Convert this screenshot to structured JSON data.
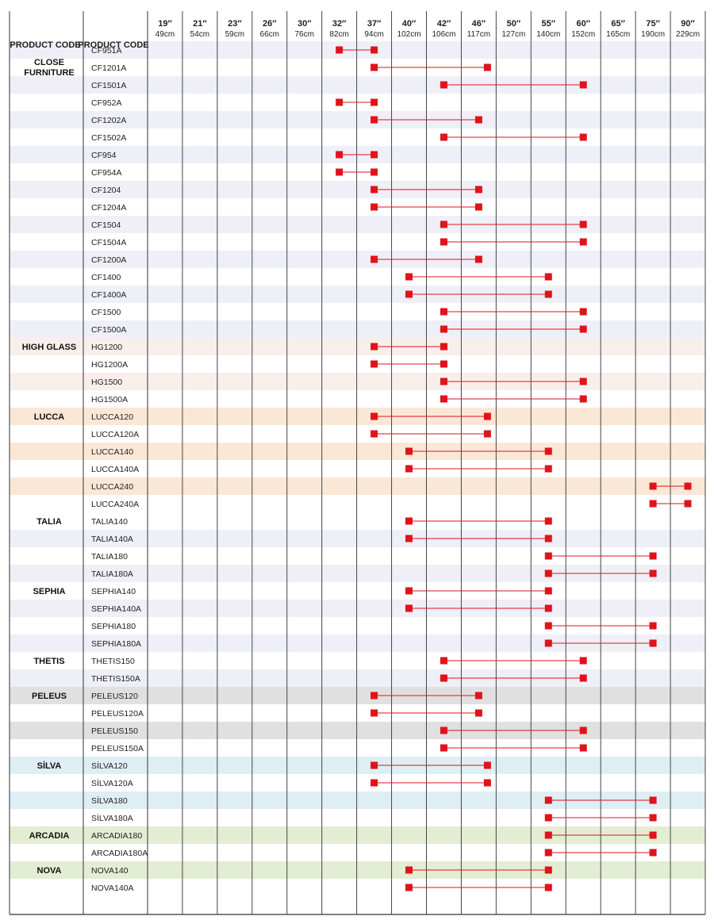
{
  "chart_data": {
    "type": "table",
    "headers": {
      "family": "PRODUCT CODE",
      "code": "PRODUCT CODE",
      "first_family": "CLOSE FURNITURE"
    },
    "size_columns": [
      {
        "inch": "19″",
        "cm": "49cm"
      },
      {
        "inch": "21″",
        "cm": "54cm"
      },
      {
        "inch": "23″",
        "cm": "59cm"
      },
      {
        "inch": "26″",
        "cm": "66cm"
      },
      {
        "inch": "30″",
        "cm": "76cm"
      },
      {
        "inch": "32″",
        "cm": "82cm"
      },
      {
        "inch": "37″",
        "cm": "94cm"
      },
      {
        "inch": "40″",
        "cm": "102cm"
      },
      {
        "inch": "42″",
        "cm": "106cm"
      },
      {
        "inch": "46″",
        "cm": "117cm"
      },
      {
        "inch": "50″",
        "cm": "127cm"
      },
      {
        "inch": "55″",
        "cm": "140cm"
      },
      {
        "inch": "60″",
        "cm": "152cm"
      },
      {
        "inch": "65″",
        "cm": "165cm"
      },
      {
        "inch": "75″",
        "cm": "190cm"
      },
      {
        "inch": "90″",
        "cm": "229cm"
      }
    ],
    "families": [
      {
        "label": "CLOSE FURNITURE",
        "band": "#efeff8",
        "rows": [
          {
            "code": "CF951A",
            "min": 32,
            "max": 37
          },
          {
            "code": "CF1201A",
            "min": 37,
            "max": 47
          },
          {
            "code": "CF1501A",
            "min": 42,
            "max": 60
          },
          {
            "code": "CF952A",
            "min": 32,
            "max": 37
          },
          {
            "code": "CF1202A",
            "min": 37,
            "max": 46
          },
          {
            "code": "CF1502A",
            "min": 42,
            "max": 60
          },
          {
            "code": "CF954",
            "min": 32,
            "max": 37
          },
          {
            "code": "CF954A",
            "min": 32,
            "max": 37
          },
          {
            "code": "CF1204",
            "min": 37,
            "max": 46
          },
          {
            "code": "CF1204A",
            "min": 37,
            "max": 46
          },
          {
            "code": "CF1504",
            "min": 42,
            "max": 60
          },
          {
            "code": "CF1504A",
            "min": 42,
            "max": 60
          },
          {
            "code": "CF1200A",
            "min": 37,
            "max": 46
          },
          {
            "code": "CF1400",
            "min": 40,
            "max": 55
          },
          {
            "code": "CF1400A",
            "min": 40,
            "max": 55
          },
          {
            "code": "CF1500",
            "min": 42,
            "max": 60
          },
          {
            "code": "CF1500A",
            "min": 42,
            "max": 60
          }
        ]
      },
      {
        "label": "HIGH GLASS",
        "band": "#f9efea",
        "rows": [
          {
            "code": "HG1200",
            "min": 37,
            "max": 42
          },
          {
            "code": "HG1200A",
            "min": 37,
            "max": 42
          },
          {
            "code": "HG1500",
            "min": 42,
            "max": 60
          },
          {
            "code": "HG1500A",
            "min": 42,
            "max": 60
          }
        ]
      },
      {
        "label": "LUCCA",
        "band": "#fbe7d6",
        "rows": [
          {
            "code": "LUCCA120",
            "min": 37,
            "max": 47
          },
          {
            "code": "LUCCA120A",
            "min": 37,
            "max": 47
          },
          {
            "code": "LUCCA140",
            "min": 40,
            "max": 55
          },
          {
            "code": "LUCCA140A",
            "min": 40,
            "max": 55
          },
          {
            "code": "LUCCA240",
            "min": 75,
            "max": 90
          },
          {
            "code": "LUCCA240A",
            "min": 75,
            "max": 90
          }
        ]
      },
      {
        "label": "TALIA",
        "band": "#efeff8",
        "rows": [
          {
            "code": "TALIA140",
            "min": 40,
            "max": 55
          },
          {
            "code": "TALIA140A",
            "min": 40,
            "max": 55
          },
          {
            "code": "TALIA180",
            "min": 55,
            "max": 75
          },
          {
            "code": "TALIA180A",
            "min": 55,
            "max": 75
          }
        ]
      },
      {
        "label": "SEPHIA",
        "band": "#efeff8",
        "rows": [
          {
            "code": "SEPHIA140",
            "min": 40,
            "max": 55
          },
          {
            "code": "SEPHIA140A",
            "min": 40,
            "max": 55
          },
          {
            "code": "SEPHIA180",
            "min": 55,
            "max": 75
          },
          {
            "code": "SEPHIA180A",
            "min": 55,
            "max": 75
          }
        ]
      },
      {
        "label": "THETIS",
        "band": "#efeff8",
        "rows": [
          {
            "code": "THETIS150",
            "min": 42,
            "max": 60
          },
          {
            "code": "THETIS150A",
            "min": 42,
            "max": 60
          }
        ]
      },
      {
        "label": "PELEUS",
        "band": "#e0e0e0",
        "rows": [
          {
            "code": "PELEUS120",
            "min": 37,
            "max": 46
          },
          {
            "code": "PELEUS120A",
            "min": 37,
            "max": 46
          },
          {
            "code": "PELEUS150",
            "min": 42,
            "max": 60
          },
          {
            "code": "PELEUS150A",
            "min": 42,
            "max": 60
          }
        ]
      },
      {
        "label": "SİLVA",
        "band": "#dfeef4",
        "rows": [
          {
            "code": "SİLVA120",
            "min": 37,
            "max": 47
          },
          {
            "code": "SİLVA120A",
            "min": 37,
            "max": 47
          },
          {
            "code": "SİLVA180",
            "min": 55,
            "max": 75
          },
          {
            "code": "SİLVA180A",
            "min": 55,
            "max": 75
          }
        ]
      },
      {
        "label": "ARCADIA",
        "band": "#e3edd3",
        "rows": [
          {
            "code": "ARCADIA180",
            "min": 55,
            "max": 75
          },
          {
            "code": "ARCADIA180A",
            "min": 55,
            "max": 75
          }
        ]
      },
      {
        "label": "NOVA",
        "band": "#e3edd3",
        "rows": [
          {
            "code": "NOVA140",
            "min": 40,
            "max": 55
          },
          {
            "code": "NOVA140A",
            "min": 40,
            "max": 55
          }
        ]
      }
    ],
    "marker_color": "#e0131b"
  }
}
